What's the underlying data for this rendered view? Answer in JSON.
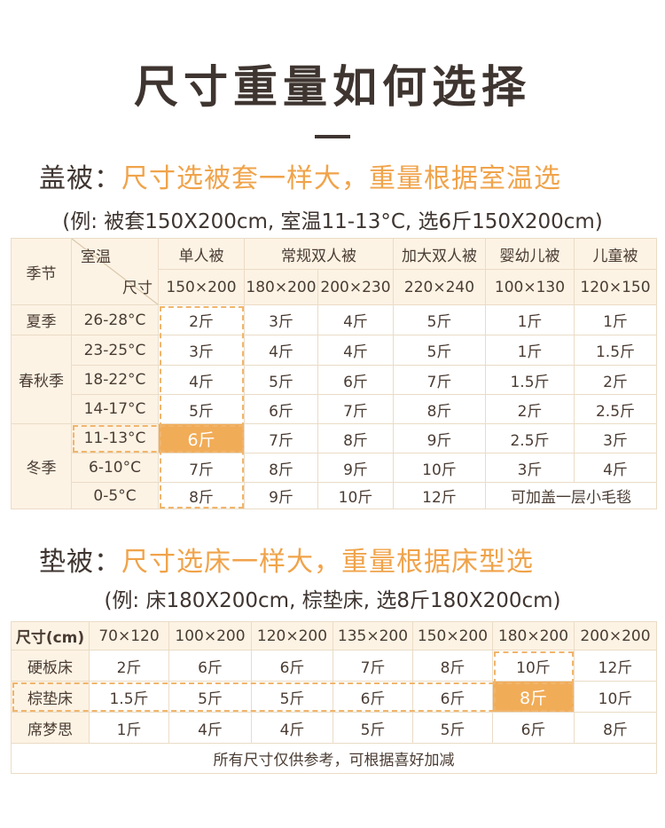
{
  "title": "尺寸重量如何选择",
  "quilt": {
    "heading_label": "盖被：",
    "heading_text": "尺寸选被套一样大，重量根据室温选",
    "example": "(例: 被套150X200cm, 室温11-13°C, 选6斤150X200cm)",
    "table": {
      "season_header": "季节",
      "temp_header": "室温",
      "size_header": "尺寸",
      "groups": [
        {
          "name": "单人被",
          "sizes": [
            "150×200"
          ]
        },
        {
          "name": "常规双人被",
          "sizes": [
            "180×200",
            "200×230"
          ]
        },
        {
          "name": "加大双人被",
          "sizes": [
            "220×240"
          ]
        },
        {
          "name": "婴幼儿被",
          "sizes": [
            "100×130"
          ]
        },
        {
          "name": "儿童被",
          "sizes": [
            "120×150"
          ]
        }
      ],
      "seasons": [
        {
          "name": "夏季",
          "rows": [
            {
              "temp": "26-28°C",
              "weights": [
                "2斤",
                "3斤",
                "4斤",
                "5斤",
                "1斤",
                "1斤"
              ]
            }
          ]
        },
        {
          "name": "春秋季",
          "rows": [
            {
              "temp": "23-25°C",
              "weights": [
                "3斤",
                "4斤",
                "4斤",
                "5斤",
                "1斤",
                "1.5斤"
              ]
            },
            {
              "temp": "18-22°C",
              "weights": [
                "4斤",
                "5斤",
                "6斤",
                "7斤",
                "1.5斤",
                "2斤"
              ]
            },
            {
              "temp": "14-17°C",
              "weights": [
                "5斤",
                "6斤",
                "7斤",
                "8斤",
                "2斤",
                "2.5斤"
              ]
            }
          ]
        },
        {
          "name": "冬季",
          "rows": [
            {
              "temp": "11-13°C",
              "weights": [
                "6斤",
                "7斤",
                "8斤",
                "9斤",
                "2.5斤",
                "3斤"
              ]
            },
            {
              "temp": "6-10°C",
              "weights": [
                "7斤",
                "8斤",
                "9斤",
                "10斤",
                "3斤",
                "4斤"
              ]
            },
            {
              "temp": "0-5°C",
              "weights": [
                "8斤",
                "9斤",
                "10斤",
                "12斤",
                "可加盖一层小毛毯"
              ]
            }
          ]
        }
      ]
    }
  },
  "pad": {
    "heading_label": "垫被：",
    "heading_text": "尺寸选床一样大，重量根据床型选",
    "example": "(例: 床180X200cm, 棕垫床, 选8斤180X200cm)",
    "table": {
      "size_header": "尺寸(cm)",
      "sizes": [
        "70×120",
        "100×200",
        "120×200",
        "135×200",
        "150×200",
        "180×200",
        "200×200"
      ],
      "rows": [
        {
          "name": "硬板床",
          "weights": [
            "2斤",
            "6斤",
            "6斤",
            "7斤",
            "8斤",
            "10斤",
            "12斤"
          ]
        },
        {
          "name": "棕垫床",
          "weights": [
            "1.5斤",
            "5斤",
            "5斤",
            "6斤",
            "6斤",
            "8斤",
            "10斤"
          ]
        },
        {
          "name": "席梦思",
          "weights": [
            "1斤",
            "4斤",
            "4斤",
            "5斤",
            "5斤",
            "6斤",
            "8斤"
          ]
        }
      ],
      "note": "所有尺寸仅供参考，可根据喜好加减"
    }
  }
}
